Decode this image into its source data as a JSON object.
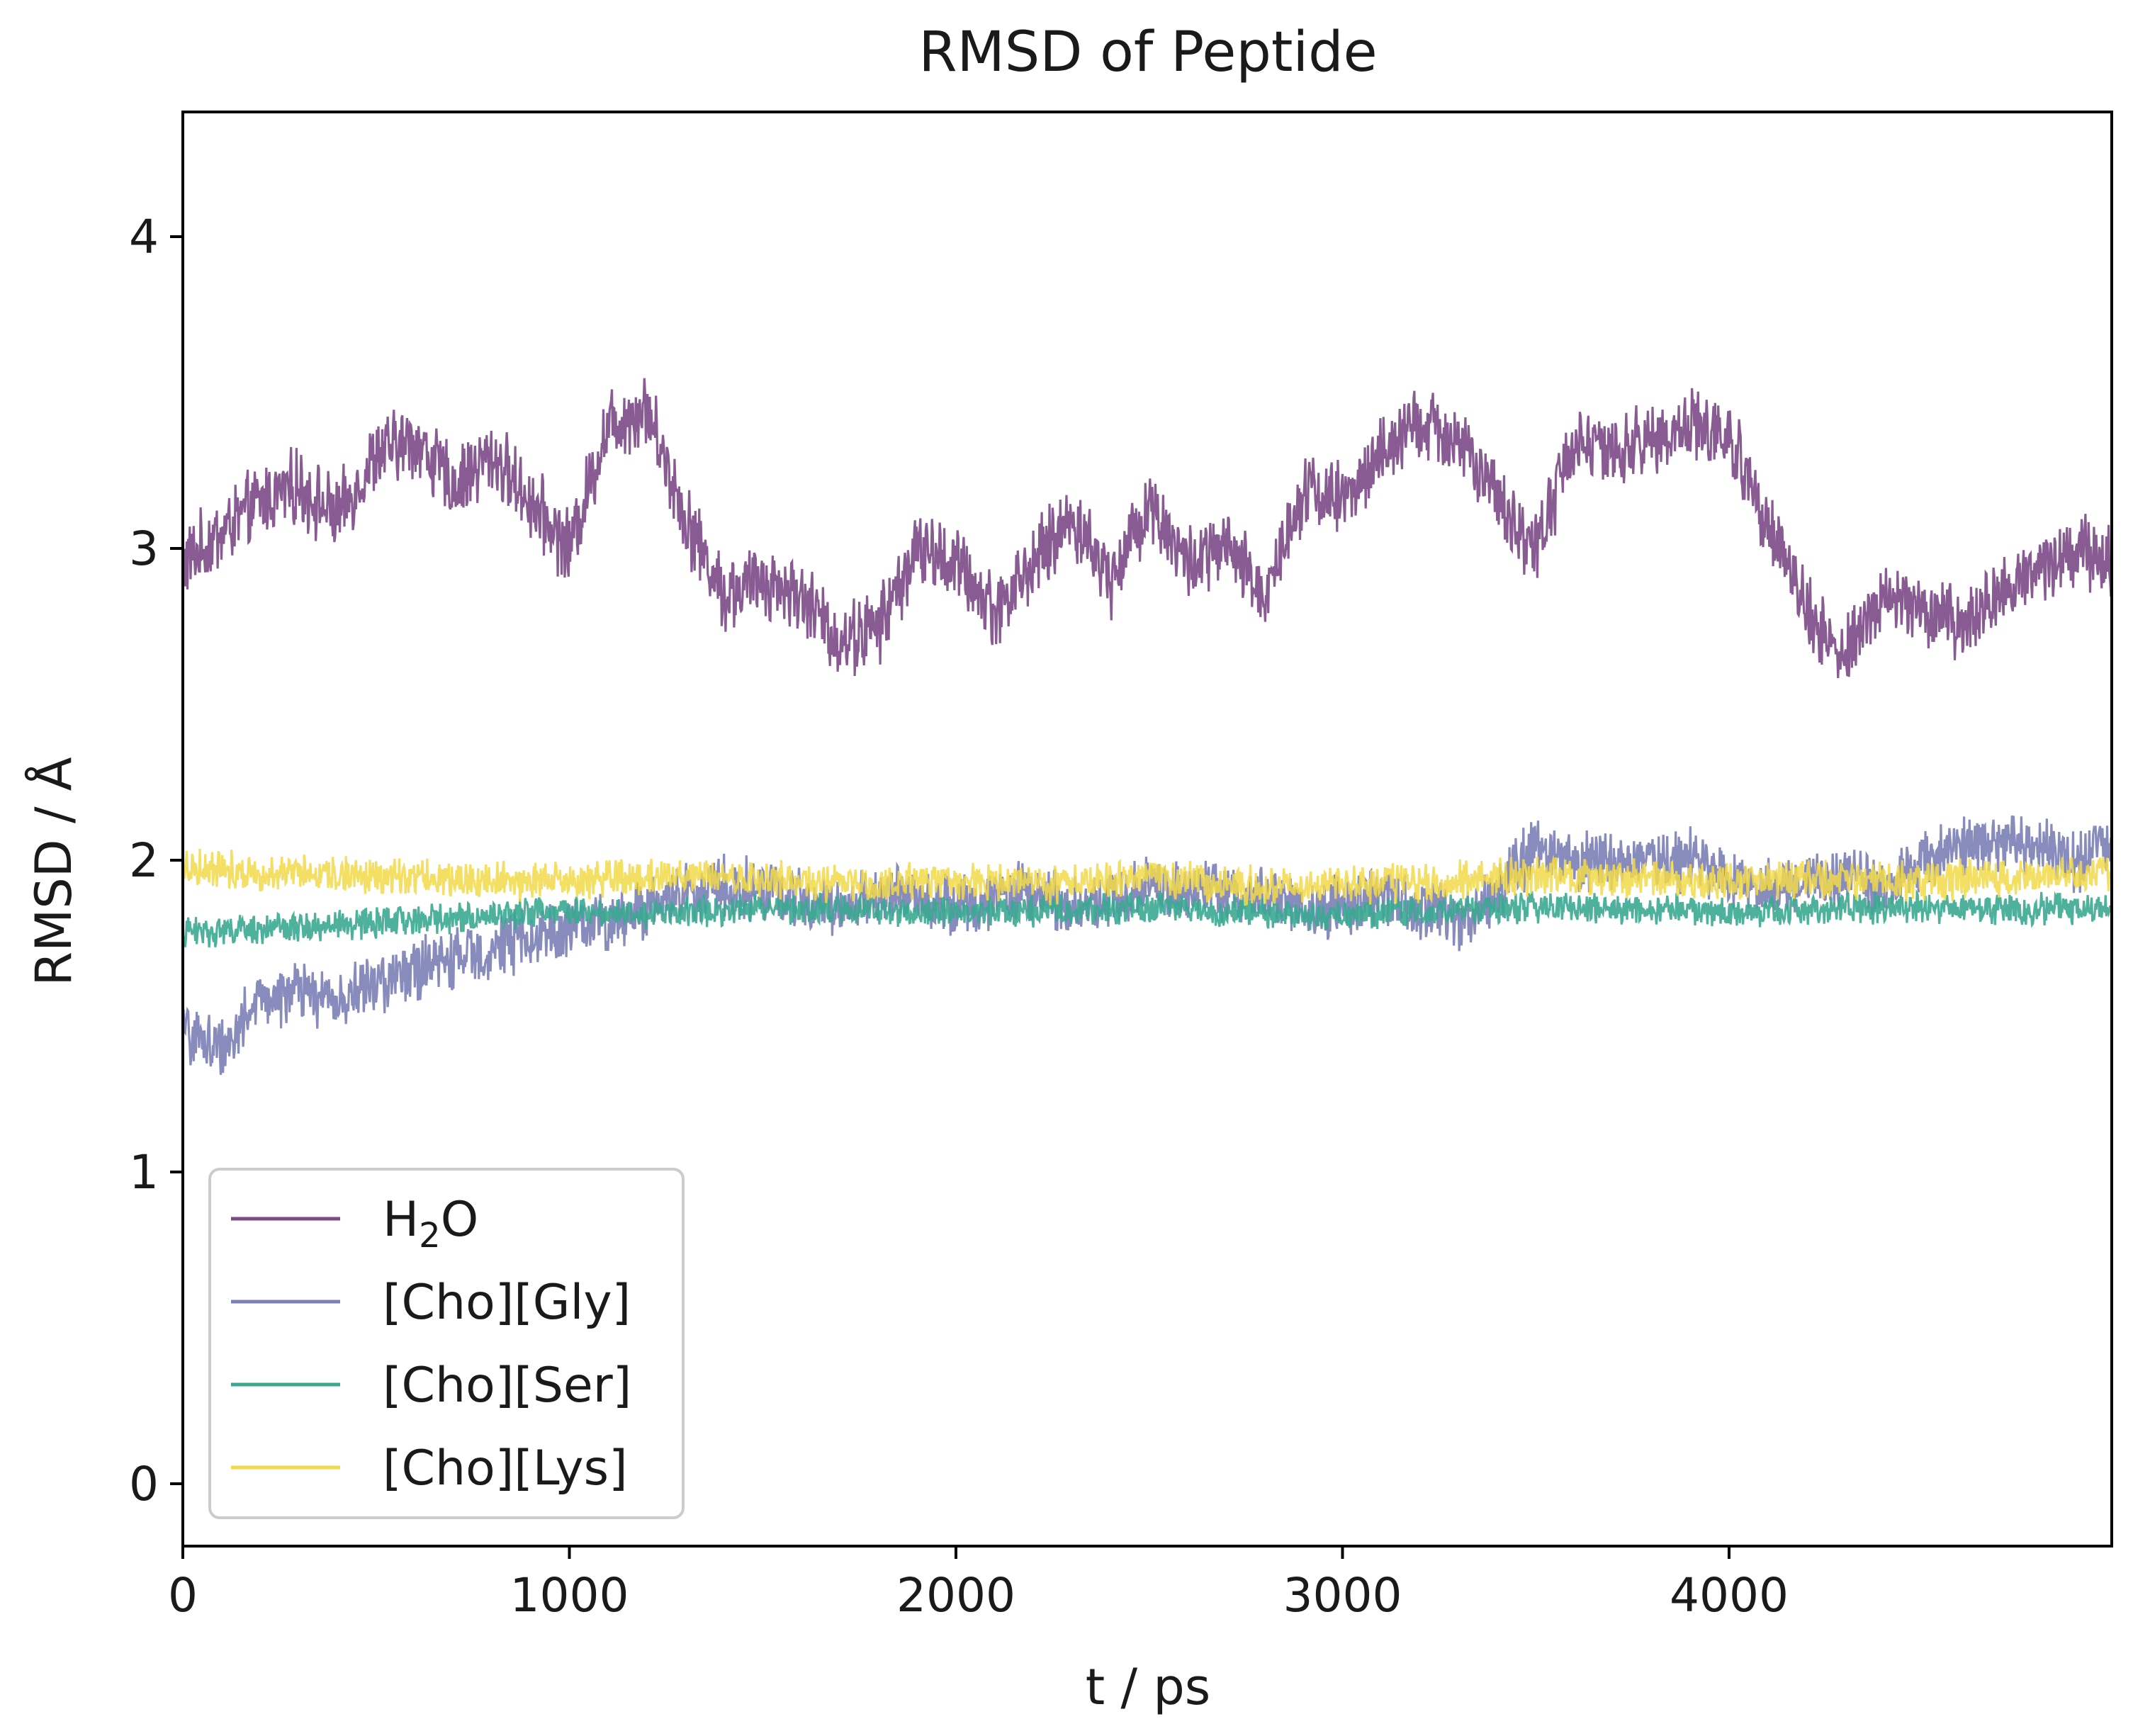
{
  "chart_data": {
    "type": "line",
    "title": "RMSD of Peptide",
    "xlabel": "t / ps",
    "ylabel": "RMSD / Å",
    "xlim": [
      0,
      4990
    ],
    "ylim": [
      -0.2,
      4.4
    ],
    "xticks": [
      0,
      1000,
      2000,
      3000,
      4000
    ],
    "yticks": [
      0,
      1,
      2,
      3,
      4
    ],
    "grid": false,
    "legend_position": "lower-left",
    "series": [
      {
        "name": "H₂O",
        "label_main": "H",
        "label_sub": "2",
        "label_tail": "O",
        "color": "#7b4a87",
        "noise": 0.1,
        "t": [
          0,
          100,
          200,
          300,
          400,
          500,
          600,
          700,
          800,
          900,
          1000,
          1100,
          1200,
          1300,
          1400,
          1500,
          1600,
          1700,
          1800,
          1900,
          2000,
          2100,
          2200,
          2300,
          2400,
          2500,
          2600,
          2700,
          2800,
          2900,
          3000,
          3100,
          3200,
          3300,
          3400,
          3500,
          3600,
          3700,
          3800,
          3900,
          4000,
          4100,
          4200,
          4300,
          4400,
          4500,
          4600,
          4700,
          4800,
          4900,
          4990
        ],
        "y": [
          2.95,
          3.05,
          3.15,
          3.2,
          3.1,
          3.3,
          3.35,
          3.2,
          3.3,
          3.15,
          3.0,
          3.4,
          3.45,
          3.1,
          2.85,
          2.9,
          2.85,
          2.7,
          2.75,
          3.0,
          2.95,
          2.8,
          2.95,
          3.1,
          2.9,
          3.15,
          2.95,
          3.0,
          2.85,
          3.2,
          3.15,
          3.3,
          3.4,
          3.35,
          3.15,
          3.0,
          3.35,
          3.3,
          3.35,
          3.4,
          3.35,
          3.1,
          2.8,
          2.65,
          2.85,
          2.8,
          2.75,
          2.85,
          2.95,
          3.0,
          2.95
        ]
      },
      {
        "name": "[Cho][Gly]",
        "color": "#7b80b5",
        "noise": 0.08,
        "t": [
          0,
          100,
          200,
          300,
          400,
          500,
          600,
          700,
          800,
          900,
          1000,
          1100,
          1200,
          1300,
          1400,
          1500,
          1600,
          1700,
          1800,
          1900,
          2000,
          2100,
          2200,
          2300,
          2400,
          2500,
          2600,
          2700,
          2800,
          2900,
          3000,
          3100,
          3200,
          3300,
          3400,
          3500,
          3600,
          3700,
          3800,
          3900,
          4000,
          4100,
          4200,
          4300,
          4400,
          4500,
          4600,
          4700,
          4800,
          4900,
          4990
        ],
        "y": [
          1.45,
          1.4,
          1.55,
          1.58,
          1.55,
          1.6,
          1.65,
          1.68,
          1.72,
          1.75,
          1.78,
          1.8,
          1.85,
          1.9,
          1.92,
          1.9,
          1.88,
          1.85,
          1.88,
          1.9,
          1.85,
          1.88,
          1.9,
          1.85,
          1.88,
          1.92,
          1.9,
          1.9,
          1.88,
          1.85,
          1.85,
          1.88,
          1.85,
          1.8,
          1.9,
          2.05,
          2.0,
          2.0,
          1.98,
          2.0,
          1.95,
          1.9,
          1.92,
          1.95,
          1.9,
          2.0,
          2.05,
          2.05,
          2.05,
          2.0,
          2.05
        ]
      },
      {
        "name": "[Cho][Ser]",
        "color": "#3aa891",
        "noise": 0.04,
        "t": [
          0,
          250,
          500,
          750,
          1000,
          1250,
          1500,
          1750,
          2000,
          2250,
          2500,
          2750,
          3000,
          3250,
          3500,
          3750,
          4000,
          4250,
          4500,
          4750,
          4990
        ],
        "y": [
          1.77,
          1.78,
          1.8,
          1.82,
          1.84,
          1.83,
          1.85,
          1.84,
          1.83,
          1.84,
          1.85,
          1.83,
          1.82,
          1.84,
          1.85,
          1.84,
          1.83,
          1.84,
          1.85,
          1.84,
          1.85
        ]
      },
      {
        "name": "[Cho][Lys]",
        "color": "#f2d94a",
        "noise": 0.05,
        "t": [
          0,
          250,
          500,
          750,
          1000,
          1250,
          1500,
          1750,
          2000,
          2250,
          2500,
          2750,
          3000,
          3250,
          3500,
          3750,
          4000,
          4250,
          4500,
          4750,
          4990
        ],
        "y": [
          1.98,
          1.96,
          1.95,
          1.94,
          1.93,
          1.95,
          1.94,
          1.92,
          1.93,
          1.92,
          1.94,
          1.92,
          1.92,
          1.93,
          1.95,
          1.94,
          1.93,
          1.94,
          1.93,
          1.95,
          1.95
        ]
      }
    ]
  }
}
